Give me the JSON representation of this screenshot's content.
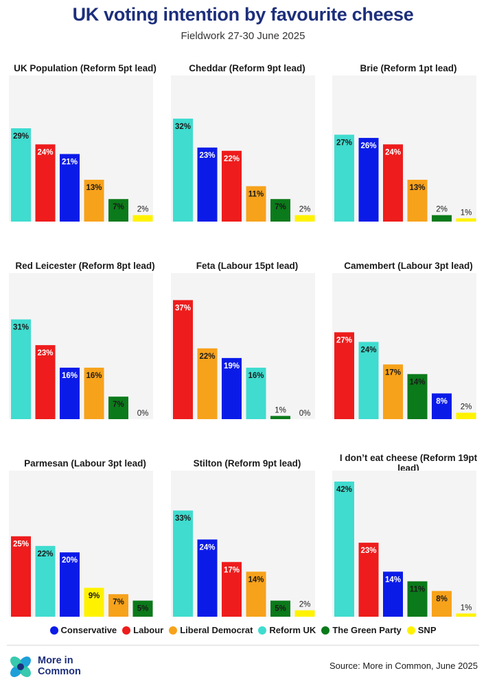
{
  "title": "UK voting intention by favourite cheese",
  "subtitle": "Fieldwork 27-30 June 2025",
  "parties": {
    "Conservative": "#0a1be8",
    "Labour": "#ee1c1c",
    "Liberal Democrat": "#f7a21b",
    "Reform UK": "#3fdccf",
    "The Green Party": "#0b7a1a",
    "SNP": "#fff200"
  },
  "chart_data": [
    {
      "type": "bar",
      "title": "UK Population (Reform 5pt lead)",
      "categories": [
        "Reform UK",
        "Labour",
        "Conservative",
        "Liberal Democrat",
        "The Green Party",
        "SNP"
      ],
      "values": [
        29,
        24,
        21,
        13,
        7,
        2
      ]
    },
    {
      "type": "bar",
      "title": "Cheddar (Reform 9pt lead)",
      "categories": [
        "Reform UK",
        "Conservative",
        "Labour",
        "Liberal Democrat",
        "The Green Party",
        "SNP"
      ],
      "values": [
        32,
        23,
        22,
        11,
        7,
        2
      ]
    },
    {
      "type": "bar",
      "title": "Brie (Reform 1pt lead)",
      "categories": [
        "Reform UK",
        "Conservative",
        "Labour",
        "Liberal Democrat",
        "The Green Party",
        "SNP"
      ],
      "values": [
        27,
        26,
        24,
        13,
        2,
        1
      ]
    },
    {
      "type": "bar",
      "title": "Red Leicester (Reform 8pt lead)",
      "categories": [
        "Reform UK",
        "Labour",
        "Conservative",
        "Liberal Democrat",
        "The Green Party",
        "SNP"
      ],
      "values": [
        31,
        23,
        16,
        16,
        7,
        0
      ]
    },
    {
      "type": "bar",
      "title": "Feta (Labour 15pt lead)",
      "categories": [
        "Labour",
        "Liberal Democrat",
        "Conservative",
        "Reform UK",
        "The Green Party",
        "SNP"
      ],
      "values": [
        37,
        22,
        19,
        16,
        1,
        0
      ]
    },
    {
      "type": "bar",
      "title": "Camembert (Labour 3pt lead)",
      "categories": [
        "Labour",
        "Reform UK",
        "Liberal Democrat",
        "The Green Party",
        "Conservative",
        "SNP"
      ],
      "values": [
        27,
        24,
        17,
        14,
        8,
        2
      ]
    },
    {
      "type": "bar",
      "title": "Parmesan (Labour 3pt lead)",
      "categories": [
        "Labour",
        "Reform UK",
        "Conservative",
        "SNP",
        "Liberal Democrat",
        "The Green Party"
      ],
      "values": [
        25,
        22,
        20,
        9,
        7,
        5
      ]
    },
    {
      "type": "bar",
      "title": "Stilton (Reform 9pt lead)",
      "categories": [
        "Reform UK",
        "Conservative",
        "Labour",
        "Liberal Democrat",
        "The Green Party",
        "SNP"
      ],
      "values": [
        33,
        24,
        17,
        14,
        5,
        2
      ]
    },
    {
      "type": "bar",
      "title": "I don’t eat cheese (Reform 19pt lead)",
      "categories": [
        "Reform UK",
        "Labour",
        "Conservative",
        "The Green Party",
        "Liberal Democrat",
        "SNP"
      ],
      "values": [
        42,
        23,
        14,
        11,
        8,
        1
      ]
    }
  ],
  "legend": [
    "Conservative",
    "Labour",
    "Liberal Democrat",
    "Reform UK",
    "The Green Party",
    "SNP"
  ],
  "logo_text_line1": "More in",
  "logo_text_line2": "Common",
  "source": "Source: More in Common, June 2025"
}
